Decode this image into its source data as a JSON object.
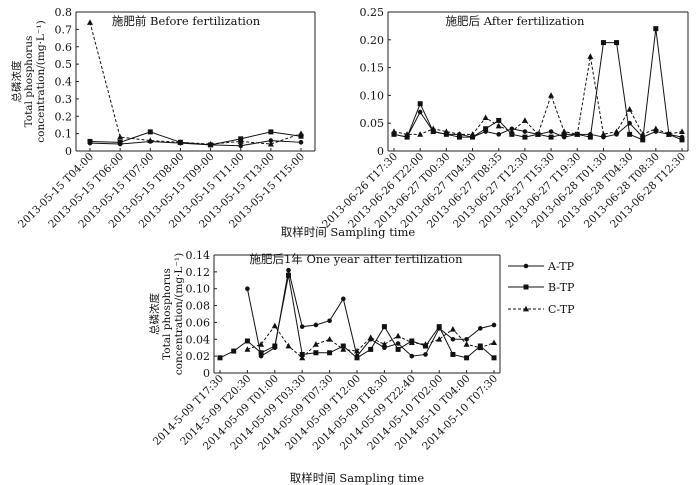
{
  "chart_data": [
    {
      "type": "line",
      "title": "施肥前 Before fertilization",
      "ylabel": [
        "总磷浓度",
        "Total phosphorus",
        "concentration/(mg·L⁻¹)"
      ],
      "xlabel": "",
      "ylim": [
        0,
        0.8
      ],
      "yticks": [
        "0",
        "0.1",
        "0.2",
        "0.3",
        "0.4",
        "0.5",
        "0.6",
        "0.7",
        "0.8"
      ],
      "categories": [
        "2013-05-15 T04:00",
        "2013-05-15 T06:00",
        "2013-05-15 T07:00",
        "2013-05-15 T08:00",
        "2013-05-15 T09:00",
        "2013-05-15 T11:00",
        "2013-05-15 T13:00",
        "2013-05-15 T15:00"
      ],
      "series": [
        {
          "name": "A-TP",
          "values": [
            0.045,
            0.04,
            0.055,
            0.045,
            0.035,
            0.03,
            0.06,
            0.05
          ]
        },
        {
          "name": "B-TP",
          "values": [
            0.055,
            0.05,
            0.11,
            0.05,
            0.035,
            0.07,
            0.11,
            0.085
          ]
        },
        {
          "name": "C-TP",
          "values": [
            0.74,
            0.08,
            0.06,
            0.05,
            0.04,
            0.055,
            0.04,
            0.1
          ]
        }
      ]
    },
    {
      "type": "line",
      "title": "施肥后 After fertilization",
      "ylabel": [],
      "xlabel": "",
      "ylim": [
        0,
        0.25
      ],
      "yticks": [
        "0",
        "0.05",
        "0.10",
        "0.15",
        "0.20",
        "0.25"
      ],
      "categories": [
        "2013-06-26 T17:30",
        "2013-06-26 T22:00",
        "2013-06-27 T00:30",
        "2013-06-27 T04:30",
        "2013-06-27 T08:35",
        "2013-06-27 T12:30",
        "2013-06-27 T15:30",
        "2013-06-27 T19:30",
        "2013-06-28 T01:30",
        "2013-06-28 T04:30",
        "2013-06-28 T08:30",
        "2013-06-28 T12:30"
      ],
      "x": [
        0,
        0.5,
        1,
        1.5,
        2,
        2.5,
        3,
        3.5,
        4,
        4.5,
        5,
        5.5,
        6,
        6.5,
        7,
        7.5,
        8,
        8.5,
        9,
        9.5,
        10,
        10.5,
        11
      ],
      "series": [
        {
          "name": "A-TP",
          "values": [
            0.03,
            0.025,
            0.07,
            0.035,
            0.03,
            0.03,
            0.025,
            0.035,
            0.03,
            0.04,
            0.035,
            0.03,
            0.035,
            0.025,
            0.03,
            0.03,
            0.025,
            0.03,
            0.05,
            0.025,
            0.035,
            0.03,
            0.025
          ]
        },
        {
          "name": "B-TP",
          "values": [
            0.03,
            0.025,
            0.085,
            0.035,
            0.03,
            0.025,
            0.025,
            0.04,
            0.055,
            0.03,
            0.025,
            0.03,
            0.025,
            0.03,
            0.03,
            0.025,
            0.195,
            0.195,
            0.03,
            0.02,
            0.22,
            0.03,
            0.02
          ]
        },
        {
          "name": "C-TP",
          "values": [
            0.035,
            0.03,
            0.03,
            0.04,
            0.035,
            0.03,
            0.03,
            0.06,
            0.045,
            0.035,
            0.055,
            0.03,
            0.1,
            0.035,
            0.03,
            0.17,
            0.03,
            0.035,
            0.075,
            0.03,
            0.04,
            0.03,
            0.035
          ]
        }
      ]
    },
    {
      "type": "line",
      "title": "施肥后1年 One year after fertilization",
      "ylabel": [
        "总磷浓度",
        "Total phosphorus",
        "concentration/(mg·L⁻¹)"
      ],
      "xlabel": "取样时间 Sampling time",
      "ylim": [
        0,
        0.14
      ],
      "yticks": [
        "0",
        "0.02",
        "0.04",
        "0.06",
        "0.08",
        "0.10",
        "0.12",
        "0.14"
      ],
      "categories": [
        "2014-5-09 T17:30",
        "2014-5-09 T20:30",
        "2014-05-09 T01:00",
        "2014-05-09 T03:30",
        "2014-05-09 T07:30",
        "2014-05-09 T12:00",
        "2014-05-09 T18:30",
        "2014-05-09 T22:40",
        "2014-05-10 T02:00",
        "2014-05-10 T04:00",
        "2014-05-10 T07:30"
      ],
      "x": [
        0,
        0.5,
        1,
        1.5,
        2,
        2.5,
        3,
        3.5,
        4,
        4.5,
        5,
        5.5,
        6,
        6.5,
        7,
        7.5,
        8,
        8.5,
        9,
        9.5,
        10
      ],
      "series": [
        {
          "name": "A-TP",
          "values": [
            null,
            null,
            0.1,
            0.02,
            0.03,
            0.122,
            0.055,
            0.057,
            0.062,
            0.088,
            0.02,
            0.04,
            0.03,
            0.035,
            0.02,
            0.022,
            0.053,
            0.04,
            0.04,
            0.053,
            0.057
          ]
        },
        {
          "name": "B-TP",
          "values": [
            0.018,
            0.026,
            0.038,
            0.024,
            0.032,
            0.116,
            0.022,
            0.024,
            0.024,
            0.032,
            0.018,
            0.028,
            0.055,
            0.028,
            0.038,
            0.032,
            0.055,
            0.022,
            0.018,
            0.032,
            0.018
          ]
        },
        {
          "name": "C-TP",
          "values": [
            null,
            null,
            0.028,
            0.034,
            0.056,
            0.032,
            0.018,
            0.034,
            0.04,
            0.028,
            0.026,
            0.042,
            0.034,
            0.044,
            0.036,
            0.034,
            0.04,
            0.052,
            0.034,
            0.03,
            0.036
          ]
        }
      ]
    }
  ],
  "legend": [
    {
      "name": "A-TP",
      "marker": "circle",
      "dash": "solid"
    },
    {
      "name": "B-TP",
      "marker": "square",
      "dash": "solid"
    },
    {
      "name": "C-TP",
      "marker": "triangle",
      "dash": "dashed"
    }
  ],
  "xlabel_shared": "取样时间 Sampling time",
  "colors": {
    "line": "#111111",
    "axis": "#222222",
    "background": "#ffffff"
  }
}
